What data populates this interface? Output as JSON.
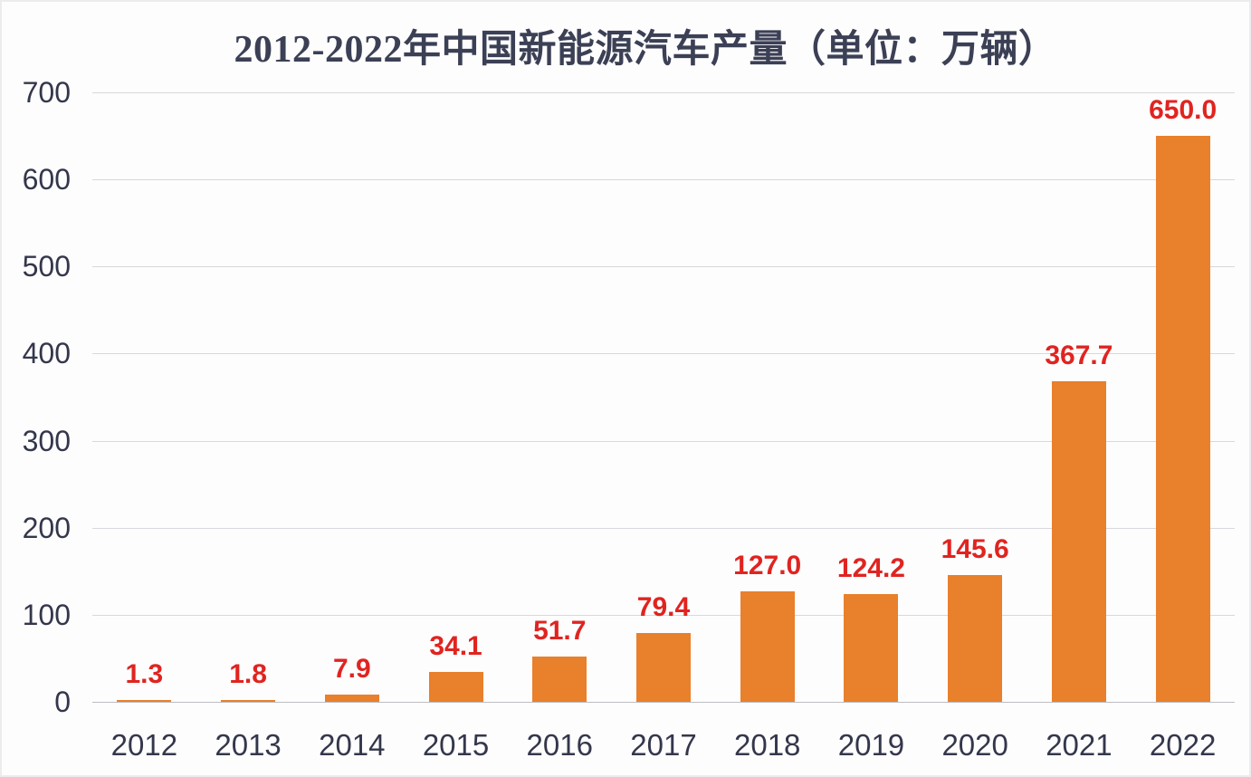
{
  "chart_data": {
    "type": "bar",
    "title": "2012-2022年中国新能源汽车产量（单位：万辆）",
    "xlabel": "",
    "ylabel": "",
    "categories": [
      "2012",
      "2013",
      "2014",
      "2015",
      "2016",
      "2017",
      "2018",
      "2019",
      "2020",
      "2021",
      "2022"
    ],
    "values": [
      1.3,
      1.8,
      7.9,
      34.1,
      51.7,
      79.4,
      127.0,
      124.2,
      145.6,
      367.7,
      650.0
    ],
    "data_labels": [
      "1.3",
      "1.8",
      "7.9",
      "34.1",
      "51.7",
      "79.4",
      "127.0",
      "124.2",
      "145.6",
      "367.7",
      "650.0"
    ],
    "ylim": [
      0,
      700
    ],
    "yticks": [
      0,
      100,
      200,
      300,
      400,
      500,
      600,
      700
    ],
    "grid": true,
    "legend": false,
    "colors": {
      "bar": "#E9802C",
      "data_label": "#E02420",
      "title": "#3C4055",
      "axis_text": "#34374B",
      "gridline": "#D8D8DD",
      "axis_line": "#BDBDC3",
      "background": "#FDFDFE"
    }
  }
}
